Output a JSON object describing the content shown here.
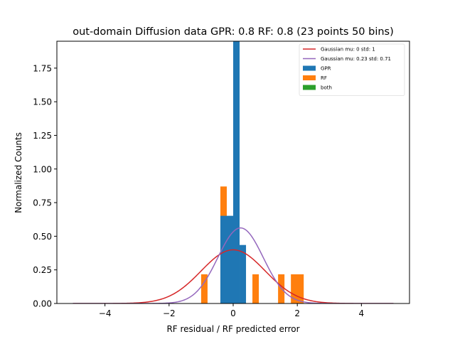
{
  "chart_data": {
    "type": "bar",
    "title": "out-domain Diffusion data GPR: 0.8 RF: 0.8 (23 points 50 bins)",
    "xlabel": "RF residual / RF predicted error",
    "ylabel": "Normalized Counts",
    "xlim": [
      -5.5,
      5.5
    ],
    "ylim": [
      0,
      1.95
    ],
    "xticks": [
      -4,
      -2,
      0,
      2,
      4
    ],
    "xtick_labels": [
      "−4",
      "−2",
      "0",
      "2",
      "4"
    ],
    "yticks": [
      0.0,
      0.25,
      0.5,
      0.75,
      1.0,
      1.25,
      1.5,
      1.75
    ],
    "ytick_labels": [
      "0.00",
      "0.25",
      "0.50",
      "0.75",
      "1.00",
      "1.25",
      "1.50",
      "1.75"
    ],
    "legend_position": "top-right",
    "colors": {
      "gpr": "#1f77b4",
      "rf": "#ff7f0e",
      "both": "#2ca02c",
      "gauss_std": "#d62728",
      "gauss_fit": "#9467bd"
    },
    "legend": [
      {
        "label": "Gaussian mu: 0 std: 1",
        "kind": "line",
        "color": "#d62728"
      },
      {
        "label": "Gaussian mu: 0.23 std: 0.71",
        "kind": "line",
        "color": "#9467bd"
      },
      {
        "label": "GPR",
        "kind": "patch",
        "color": "#1f77b4"
      },
      {
        "label": "RF",
        "kind": "patch",
        "color": "#ff7f0e"
      },
      {
        "label": "both",
        "kind": "patch",
        "color": "#2ca02c"
      }
    ],
    "series": [
      {
        "name": "RF",
        "color": "#ff7f0e",
        "bins": [
          {
            "x0": -1.0,
            "x1": -0.8,
            "value": 0.217
          },
          {
            "x0": -0.4,
            "x1": -0.2,
            "value": 0.87
          },
          {
            "x0": 0.6,
            "x1": 0.8,
            "value": 0.217
          },
          {
            "x0": 1.4,
            "x1": 1.6,
            "value": 0.217
          },
          {
            "x0": 1.8,
            "x1": 2.2,
            "value": 0.217
          }
        ]
      },
      {
        "name": "GPR",
        "color": "#1f77b4",
        "bins": [
          {
            "x0": -0.4,
            "x1": 0.0,
            "value": 0.652
          },
          {
            "x0": 0.0,
            "x1": 0.2,
            "value": 1.96
          },
          {
            "x0": 0.2,
            "x1": 0.4,
            "value": 0.435
          }
        ]
      }
    ],
    "curves": [
      {
        "name": "Gaussian mu: 0 std: 1",
        "mu": 0,
        "std": 1,
        "color": "#d62728",
        "xrange": [
          -5,
          5
        ]
      },
      {
        "name": "Gaussian mu: 0.23 std: 0.71",
        "mu": 0.23,
        "std": 0.71,
        "color": "#9467bd",
        "xrange": [
          -5,
          5
        ]
      }
    ]
  }
}
